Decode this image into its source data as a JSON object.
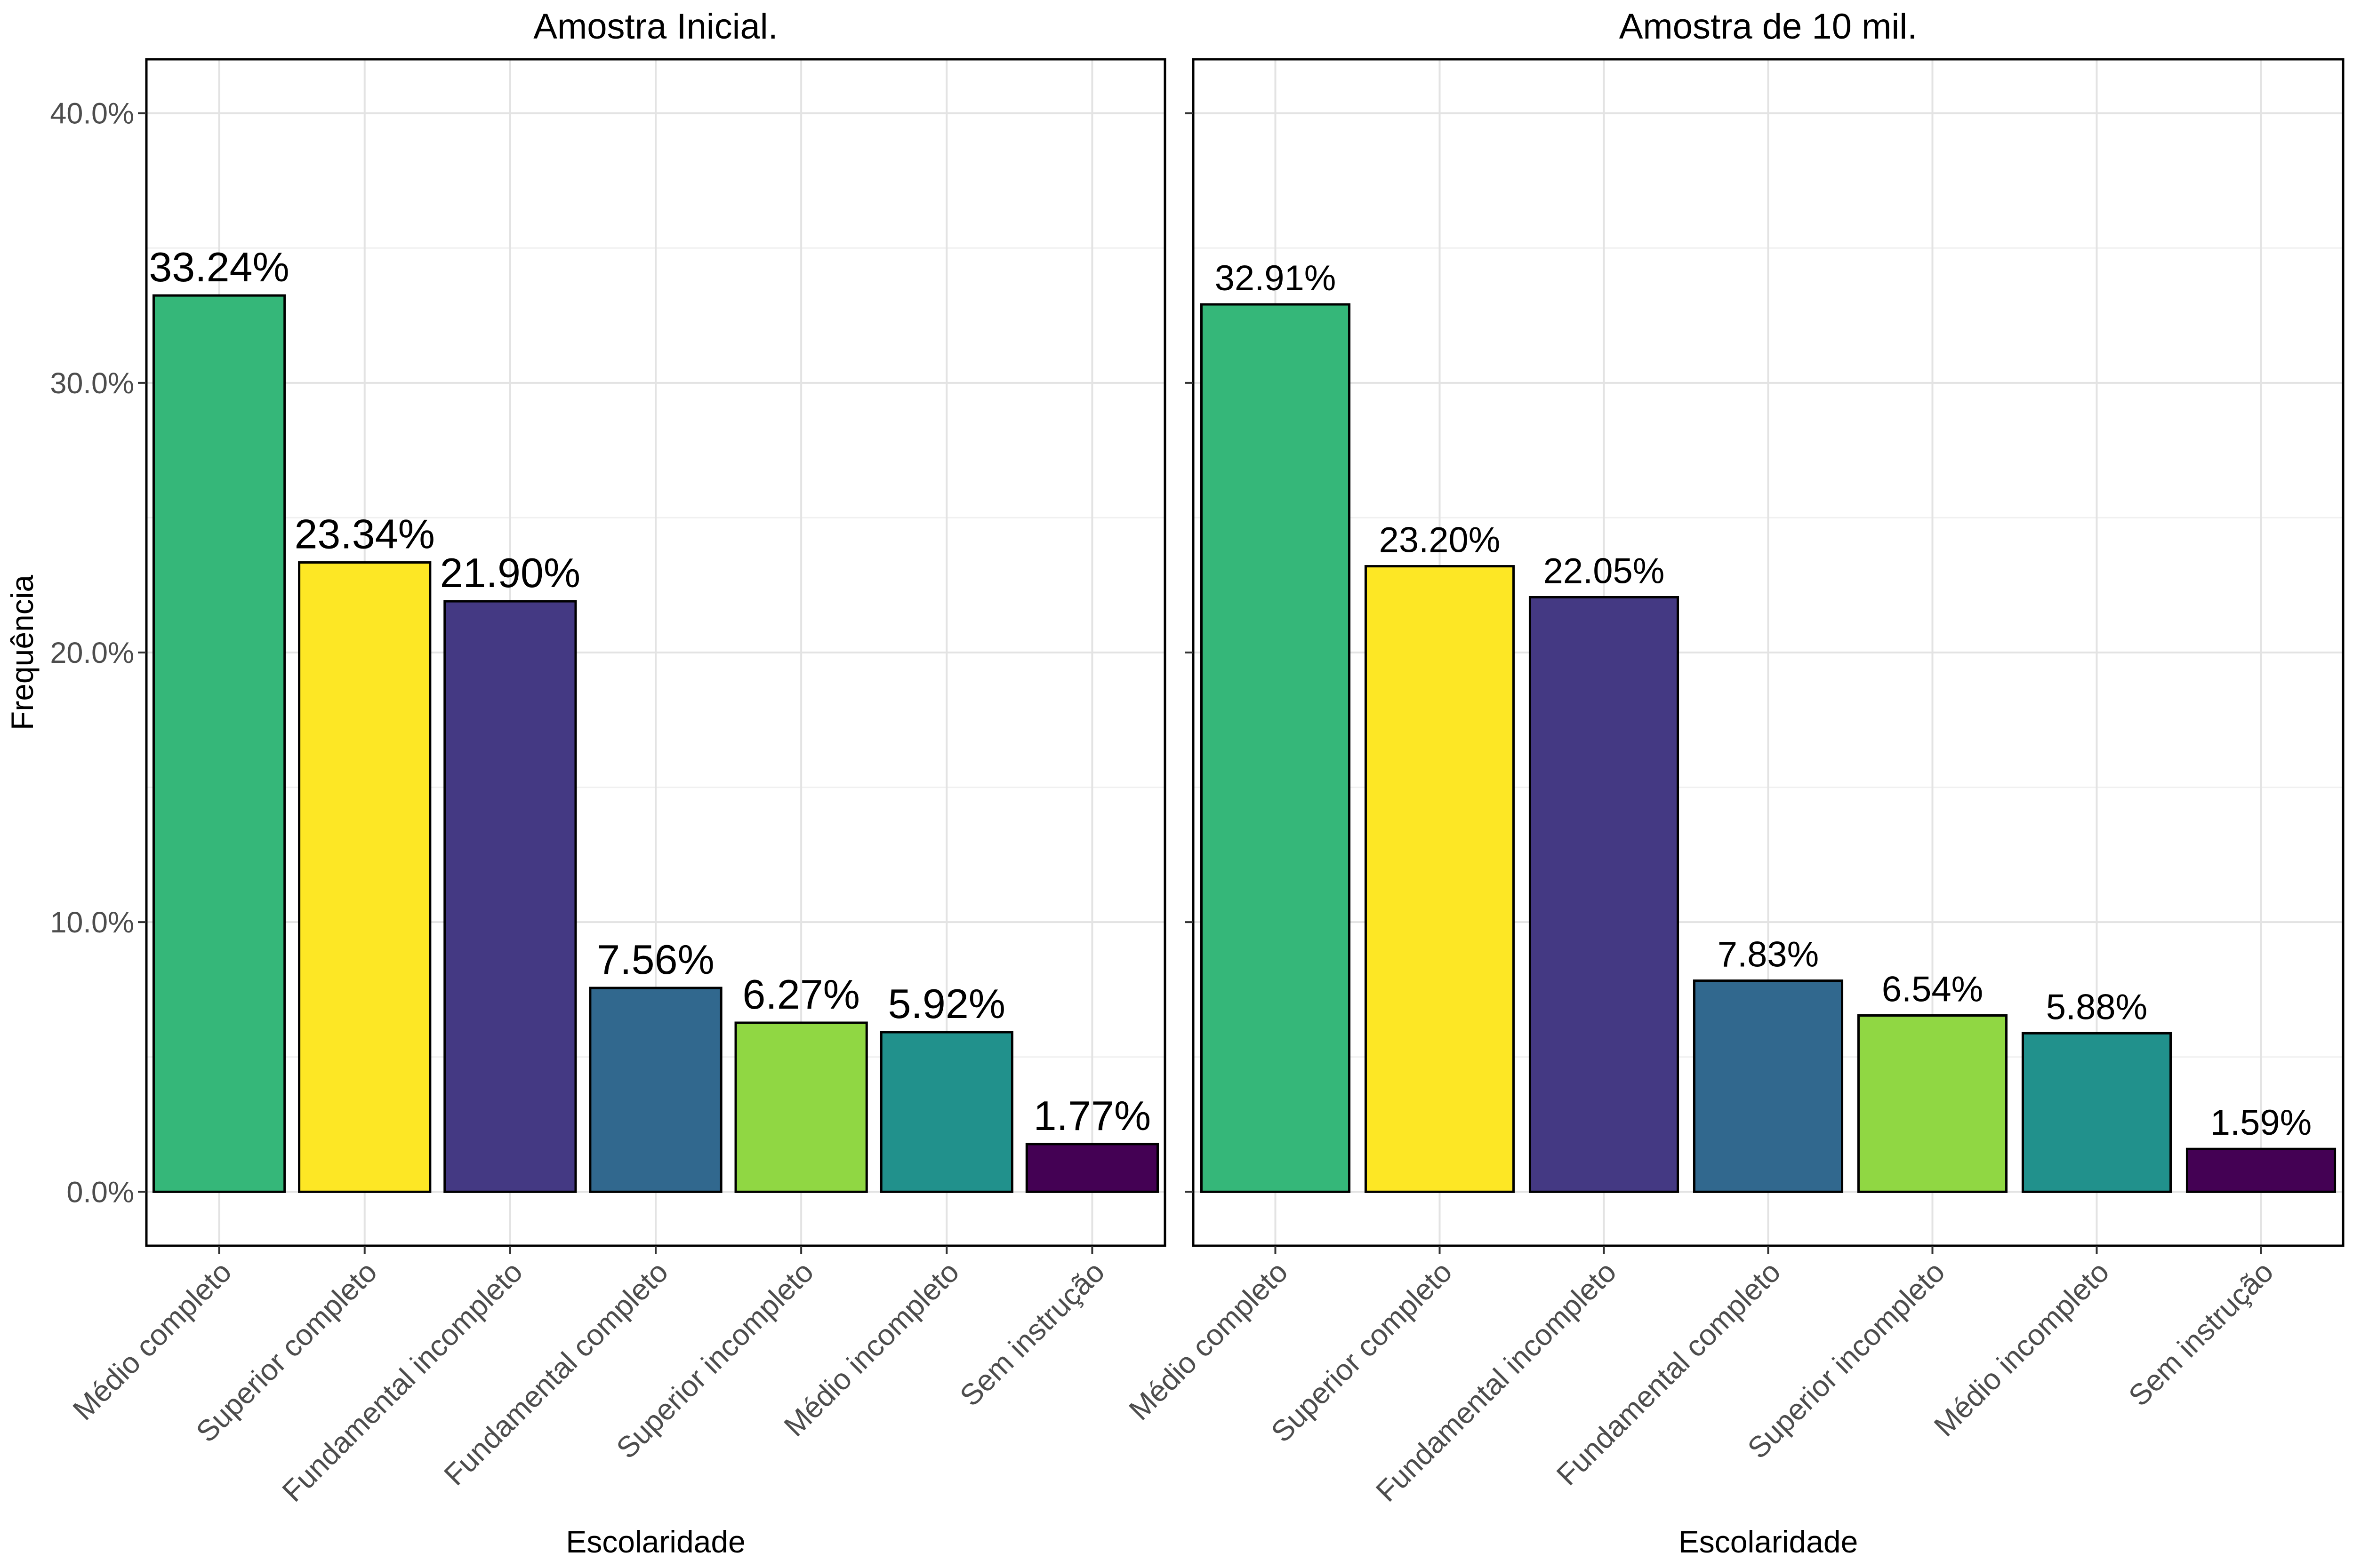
{
  "y_axis": {
    "label": "Frequência",
    "ticks": [
      "0.0%",
      "10.0%",
      "20.0%",
      "30.0%",
      "40.0%"
    ]
  },
  "chart_data": [
    {
      "type": "bar",
      "title": "Amostra Inicial.",
      "xlabel": "Escolaridade",
      "ylabel": "Frequência",
      "ylim": [
        -2,
        42
      ],
      "grid": true,
      "legend": "none",
      "categories": [
        "Médio completo",
        "Superior completo",
        "Fundamental incompleto",
        "Fundamental completo",
        "Superior incompleto",
        "Médio incompleto",
        "Sem instrução"
      ],
      "values": [
        33.24,
        23.34,
        21.9,
        7.56,
        6.27,
        5.92,
        1.77
      ],
      "data_labels": [
        "33.24%",
        "23.34%",
        "21.90%",
        "7.56%",
        "6.27%",
        "5.92%",
        "1.77%"
      ],
      "colors": [
        "#35b779",
        "#fde725",
        "#443983",
        "#31688e",
        "#90d743",
        "#21918c",
        "#440154"
      ]
    },
    {
      "type": "bar",
      "title": "Amostra de 10 mil.",
      "xlabel": "Escolaridade",
      "ylabel": "Frequência",
      "ylim": [
        -2,
        42
      ],
      "grid": true,
      "legend": "none",
      "categories": [
        "Médio completo",
        "Superior completo",
        "Fundamental incompleto",
        "Fundamental completo",
        "Superior incompleto",
        "Médio incompleto",
        "Sem instrução"
      ],
      "values": [
        32.91,
        23.2,
        22.05,
        7.83,
        6.54,
        5.88,
        1.59
      ],
      "data_labels": [
        "32.91%",
        "23.20%",
        "22.05%",
        "7.83%",
        "6.54%",
        "5.88%",
        "1.59%"
      ],
      "colors": [
        "#35b779",
        "#fde725",
        "#443983",
        "#31688e",
        "#90d743",
        "#21918c",
        "#440154"
      ]
    }
  ]
}
